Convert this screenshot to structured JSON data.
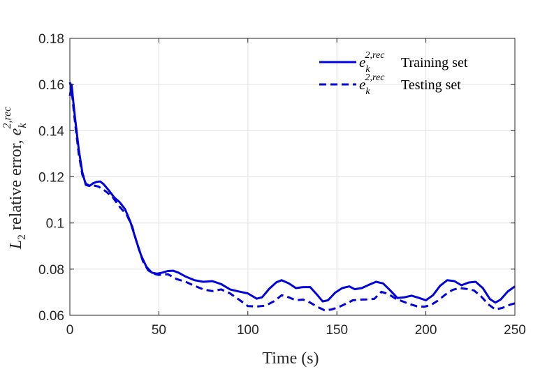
{
  "chart_data": {
    "type": "line",
    "title": "",
    "xlabel": "Time (s)",
    "ylabel_prefix": "L",
    "ylabel_prefix_sub": "2",
    "ylabel_text": " relative error, ",
    "ylabel_symbol": "e",
    "ylabel_symbol_sub": "k",
    "ylabel_symbol_sup": "2,rec",
    "xlim": [
      0,
      250
    ],
    "ylim": [
      0.06,
      0.18
    ],
    "xticks": [
      "0",
      "50",
      "100",
      "150",
      "200",
      "250"
    ],
    "yticks": [
      "0.06",
      "0.08",
      "0.1",
      "0.12",
      "0.14",
      "0.16",
      "0.18"
    ],
    "grid": true,
    "legend_position": "top-right",
    "colors": {
      "series": "#0000dd",
      "grid": "#e6e6e6",
      "axis": "#262626"
    },
    "series": [
      {
        "name": "Training set",
        "symbol": "e",
        "symbol_sub": "k",
        "symbol_sup": "2,rec",
        "style": "solid",
        "points": [
          [
            0,
            0.155
          ],
          [
            1,
            0.16
          ],
          [
            2,
            0.152
          ],
          [
            3,
            0.145
          ],
          [
            5,
            0.132
          ],
          [
            7,
            0.122
          ],
          [
            9,
            0.1165
          ],
          [
            11,
            0.116
          ],
          [
            13,
            0.1172
          ],
          [
            15,
            0.1178
          ],
          [
            17,
            0.118
          ],
          [
            19,
            0.1168
          ],
          [
            22,
            0.114
          ],
          [
            25,
            0.111
          ],
          [
            28,
            0.109
          ],
          [
            31,
            0.106
          ],
          [
            34,
            0.1005
          ],
          [
            37,
            0.093
          ],
          [
            40,
            0.086
          ],
          [
            43,
            0.081
          ],
          [
            46,
            0.0785
          ],
          [
            49,
            0.078
          ],
          [
            52,
            0.0785
          ],
          [
            55,
            0.0792
          ],
          [
            58,
            0.0793
          ],
          [
            61,
            0.0785
          ],
          [
            65,
            0.0768
          ],
          [
            70,
            0.0752
          ],
          [
            75,
            0.0745
          ],
          [
            80,
            0.0748
          ],
          [
            85,
            0.0735
          ],
          [
            90,
            0.0712
          ],
          [
            95,
            0.0703
          ],
          [
            100,
            0.0695
          ],
          [
            105,
            0.0672
          ],
          [
            108,
            0.0678
          ],
          [
            112,
            0.0715
          ],
          [
            116,
            0.0743
          ],
          [
            119,
            0.0752
          ],
          [
            123,
            0.0738
          ],
          [
            127,
            0.0718
          ],
          [
            131,
            0.0722
          ],
          [
            135,
            0.0722
          ],
          [
            139,
            0.0688
          ],
          [
            142,
            0.066
          ],
          [
            145,
            0.0665
          ],
          [
            149,
            0.0698
          ],
          [
            153,
            0.0718
          ],
          [
            157,
            0.0725
          ],
          [
            160,
            0.0713
          ],
          [
            164,
            0.0718
          ],
          [
            168,
            0.0732
          ],
          [
            172,
            0.0745
          ],
          [
            176,
            0.0738
          ],
          [
            180,
            0.0708
          ],
          [
            184,
            0.0675
          ],
          [
            188,
            0.0678
          ],
          [
            192,
            0.0685
          ],
          [
            196,
            0.0676
          ],
          [
            200,
            0.0665
          ],
          [
            204,
            0.0687
          ],
          [
            208,
            0.0728
          ],
          [
            212,
            0.0752
          ],
          [
            216,
            0.0748
          ],
          [
            220,
            0.073
          ],
          [
            224,
            0.0742
          ],
          [
            228,
            0.0745
          ],
          [
            232,
            0.0718
          ],
          [
            236,
            0.067
          ],
          [
            239,
            0.0655
          ],
          [
            242,
            0.0668
          ],
          [
            246,
            0.0703
          ],
          [
            250,
            0.0725
          ]
        ]
      },
      {
        "name": "Testing set",
        "symbol": "e",
        "symbol_sub": "k",
        "symbol_sup": "2,rec",
        "style": "dashed",
        "points": [
          [
            0,
            0.161
          ],
          [
            1,
            0.158
          ],
          [
            2,
            0.15
          ],
          [
            3,
            0.143
          ],
          [
            5,
            0.13
          ],
          [
            7,
            0.121
          ],
          [
            9,
            0.117
          ],
          [
            11,
            0.1162
          ],
          [
            13,
            0.1163
          ],
          [
            16,
            0.1158
          ],
          [
            20,
            0.1138
          ],
          [
            24,
            0.1112
          ],
          [
            28,
            0.107
          ],
          [
            32,
            0.1035
          ],
          [
            35,
            0.0985
          ],
          [
            38,
            0.0905
          ],
          [
            41,
            0.0835
          ],
          [
            44,
            0.0795
          ],
          [
            47,
            0.078
          ],
          [
            50,
            0.0775
          ],
          [
            55,
            0.0778
          ],
          [
            60,
            0.0757
          ],
          [
            65,
            0.0745
          ],
          [
            70,
            0.0728
          ],
          [
            75,
            0.0712
          ],
          [
            80,
            0.0705
          ],
          [
            85,
            0.0712
          ],
          [
            90,
            0.0695
          ],
          [
            95,
            0.0668
          ],
          [
            100,
            0.064
          ],
          [
            105,
            0.0638
          ],
          [
            110,
            0.0642
          ],
          [
            115,
            0.0662
          ],
          [
            119,
            0.0687
          ],
          [
            123,
            0.0678
          ],
          [
            127,
            0.0665
          ],
          [
            131,
            0.0668
          ],
          [
            135,
            0.0655
          ],
          [
            139,
            0.0637
          ],
          [
            143,
            0.0622
          ],
          [
            147,
            0.0625
          ],
          [
            151,
            0.0635
          ],
          [
            155,
            0.065
          ],
          [
            159,
            0.0665
          ],
          [
            163,
            0.0668
          ],
          [
            167,
            0.0669
          ],
          [
            171,
            0.0671
          ],
          [
            175,
            0.0702
          ],
          [
            179,
            0.0692
          ],
          [
            183,
            0.0672
          ],
          [
            187,
            0.066
          ],
          [
            191,
            0.0648
          ],
          [
            195,
            0.0639
          ],
          [
            199,
            0.0637
          ],
          [
            203,
            0.0645
          ],
          [
            207,
            0.0665
          ],
          [
            211,
            0.069
          ],
          [
            215,
            0.071
          ],
          [
            219,
            0.0718
          ],
          [
            223,
            0.0714
          ],
          [
            227,
            0.0708
          ],
          [
            231,
            0.0682
          ],
          [
            235,
            0.0648
          ],
          [
            239,
            0.0625
          ],
          [
            243,
            0.0632
          ],
          [
            247,
            0.0645
          ],
          [
            250,
            0.0652
          ]
        ]
      }
    ]
  }
}
